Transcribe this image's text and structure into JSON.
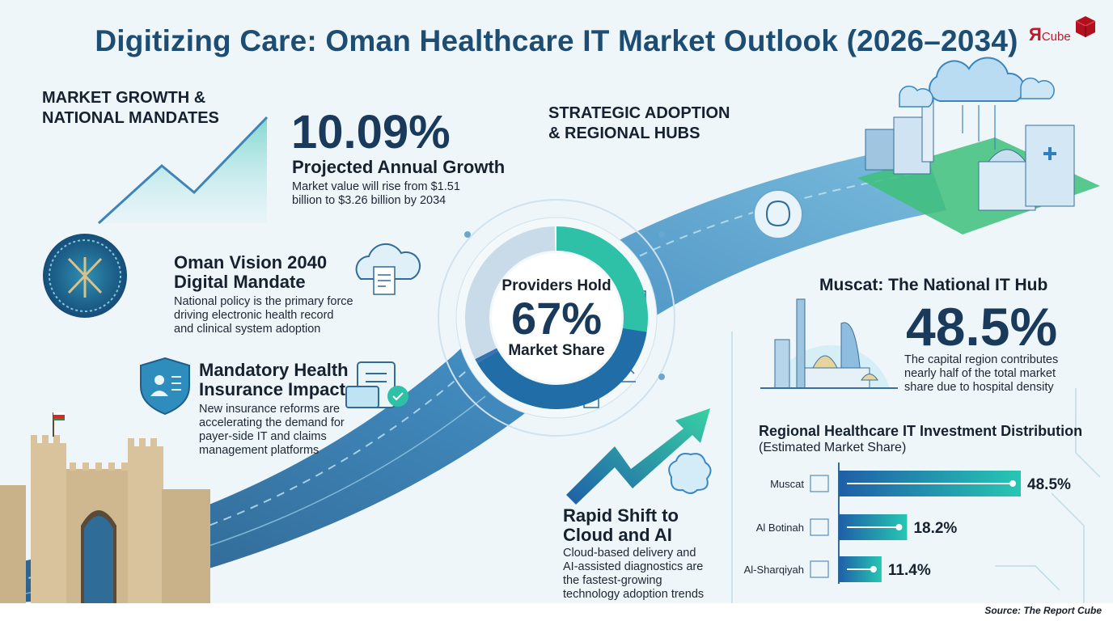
{
  "title": "Digitizing Care: Oman Healthcare IT Market Outlook (2026–2034)",
  "logo": {
    "prefix": "Я",
    "suffix": "Cube"
  },
  "growth": {
    "heading_line1": "MARKET GROWTH &",
    "heading_line2": "NATIONAL MANDATES",
    "stat": "10.09%",
    "stat_label": "Projected Annual Growth",
    "desc_line1": "Market value will rise from $1.51",
    "desc_line2": "billion to $3.26 billion by 2034"
  },
  "vision": {
    "title_line1": "Oman Vision 2040",
    "title_line2": "Digital Mandate",
    "desc_line1": "National policy is the primary force",
    "desc_line2": "driving electronic health record",
    "desc_line3": "and clinical system adoption"
  },
  "insurance": {
    "title_line1": "Mandatory Health",
    "title_line2": "Insurance Impact",
    "desc_line1": "New insurance reforms are",
    "desc_line2": "accelerating the demand for",
    "desc_line3": "payer-side IT and claims",
    "desc_line4": "management platforms"
  },
  "strategic": {
    "heading_line1": "STRATEGIC ADOPTION",
    "heading_line2": "& REGIONAL HUBS"
  },
  "providers": {
    "line1": "Providers Hold",
    "stat": "67%",
    "line2": "Market Share",
    "share": 0.67
  },
  "muscat": {
    "title": "Muscat: The National IT Hub",
    "stat": "48.5%",
    "desc_line1": "The capital region contributes",
    "desc_line2": "nearly half of the total market",
    "desc_line3": "share due to hospital density"
  },
  "cloud": {
    "title_line1": "Rapid Shift to",
    "title_line2": "Cloud and AI",
    "desc_line1": "Cloud-based delivery and",
    "desc_line2": "AI-assisted diagnostics are",
    "desc_line3": "the fastest-growing",
    "desc_line4": "technology adoption trends"
  },
  "chart_data": {
    "type": "bar",
    "orientation": "horizontal",
    "title": "Regional Healthcare IT Investment Distribution",
    "subtitle": "(Estimated Market Share)",
    "categories": [
      "Muscat",
      "Al Botinah",
      "Al-Sharqiyah"
    ],
    "values": [
      48.5,
      18.2,
      11.4
    ],
    "value_labels": [
      "48.5%",
      "18.2%",
      "11.4%"
    ],
    "unit": "%",
    "xlim": [
      0,
      50
    ],
    "grid": false,
    "colors": {
      "bar_start": "#1f5ea8",
      "bar_end": "#27c7b3"
    }
  },
  "colors": {
    "title": "#1e4d73",
    "accent_teal": "#2fc1a8",
    "accent_blue": "#1f5ea8",
    "dark_navy": "#1a3a5c"
  },
  "source": "Source: The Report Cube"
}
